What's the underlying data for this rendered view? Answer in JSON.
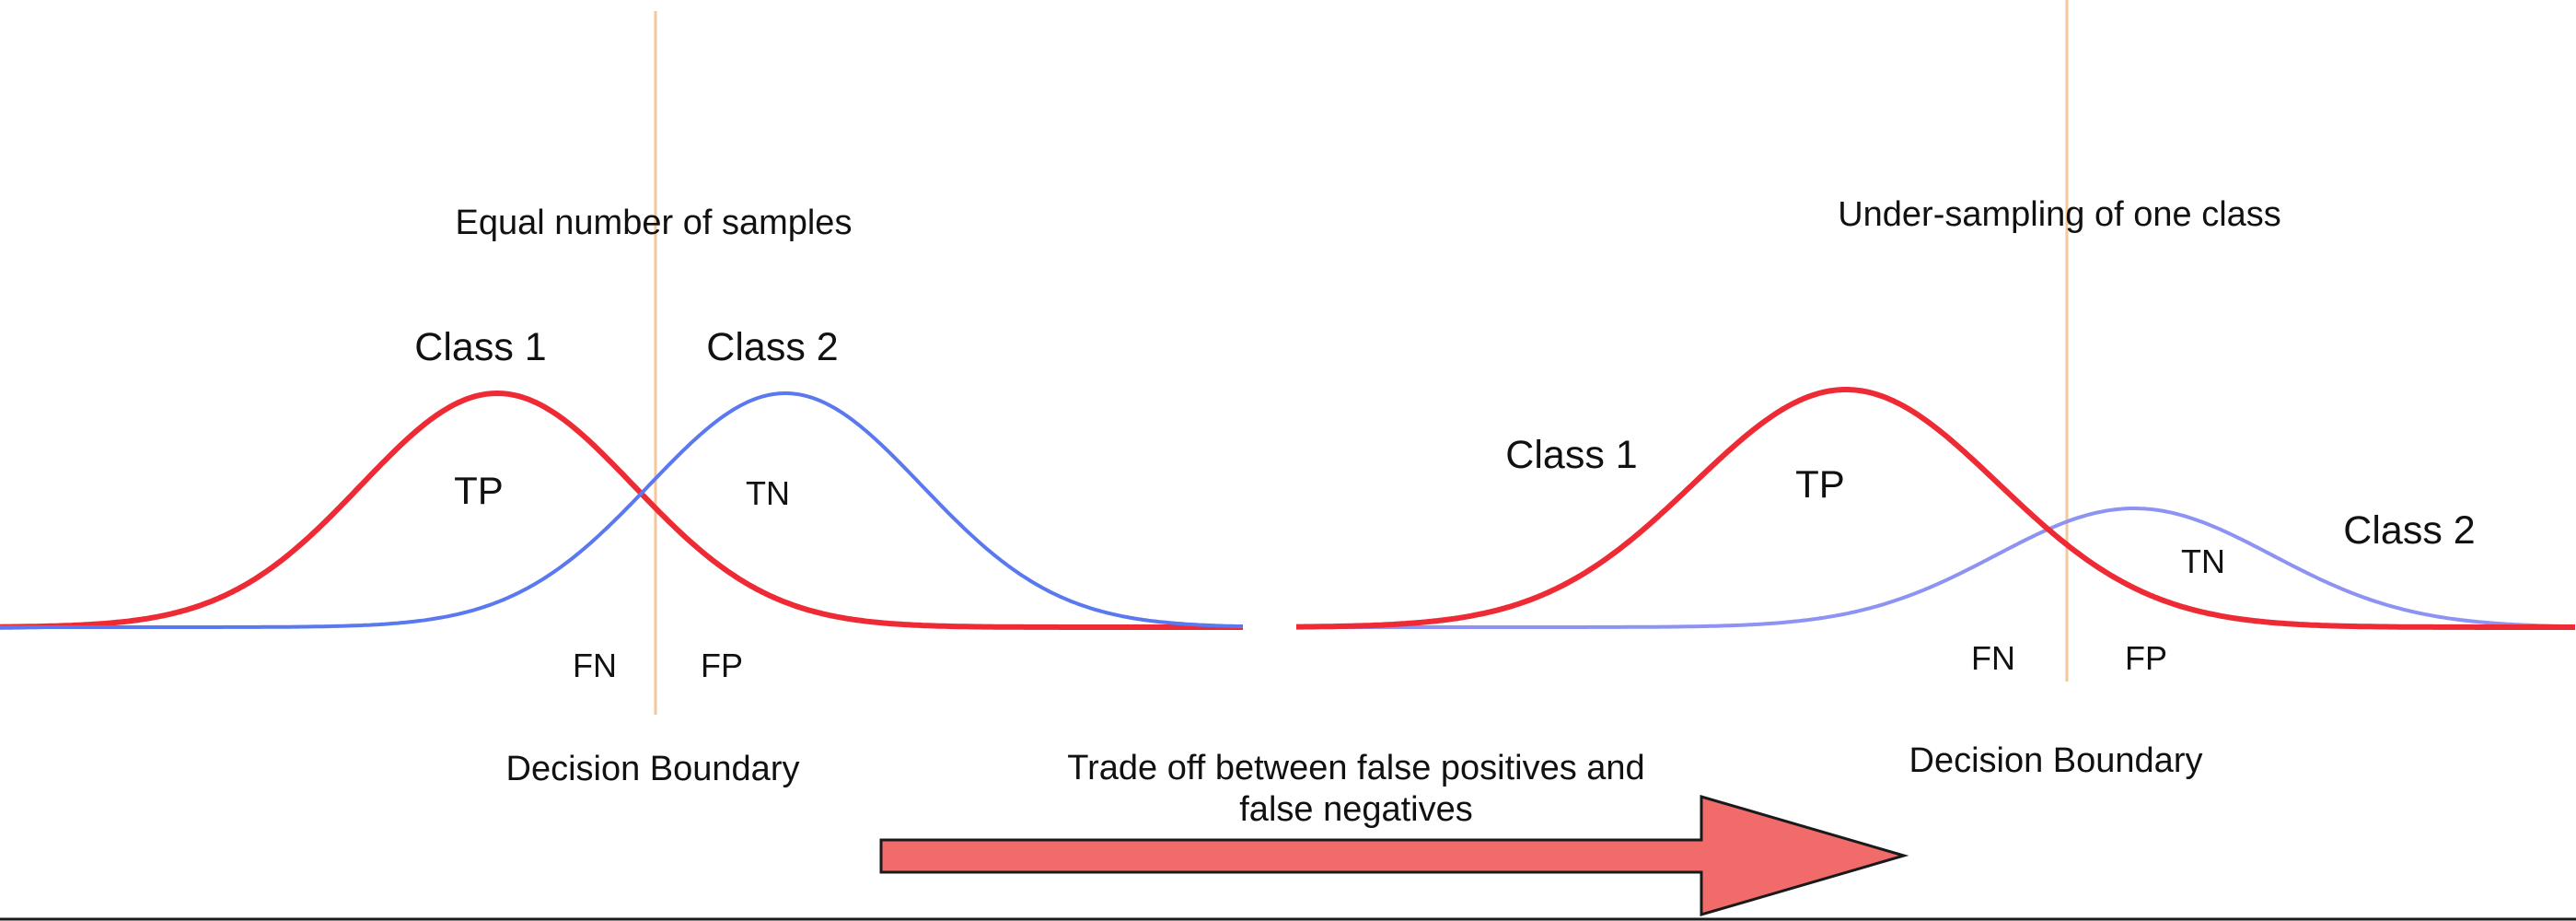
{
  "colors": {
    "class1": "#ee2a34",
    "class2_left": "#5a78f0",
    "class2_right": "#8c93f2",
    "boundary": "#f5c79a",
    "arrow_fill": "#f26b6b",
    "arrow_stroke": "#1a1a1a",
    "baseline": "#1a1a1a"
  },
  "panels": {
    "left": {
      "title": "Equal number of samples",
      "class1_label": "Class 1",
      "class2_label": "Class 2",
      "tp": "TP",
      "tn": "TN",
      "fn": "FN",
      "fp": "FP",
      "boundary_label": "Decision Boundary"
    },
    "right": {
      "title": "Under-sampling of one class",
      "class1_label": "Class 1",
      "class2_label": "Class 2",
      "tp": "TP",
      "tn": "TN",
      "fn": "FN",
      "fp": "FP",
      "boundary_label": "Decision Boundary"
    }
  },
  "arrow": {
    "line1": "Trade off between false positives and",
    "line2": "false negatives"
  }
}
